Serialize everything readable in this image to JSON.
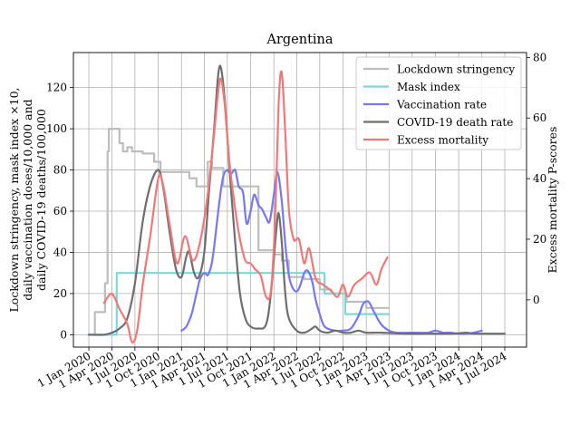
{
  "chart_data": {
    "type": "line",
    "title": "Argentina",
    "ylabel_left": [
      "Lockdown stringency, mask index ×10,",
      "daily vaccination doses/10,000 and",
      "daily COVID-19 deaths/100,000"
    ],
    "ylabel_right": "Excess mortality P-scores",
    "xlabel": "",
    "x_ticks": [
      "1 Jan 2020",
      "1 Apr 2020",
      "1 Jul 2020",
      "1 Oct 2020",
      "1 Jan 2021",
      "1 Apr 2021",
      "1 Jul 2021",
      "1 Oct 2021",
      "1 Jan 2022",
      "1 Apr 2022",
      "1 Jul 2022",
      "1 Oct 2022",
      "1 Jan 2023",
      "1 Apr 2023",
      "1 Jul 2023",
      "1 Oct 2023",
      "1 Jan 2024",
      "1 Apr 2024",
      "1 Jul 2024"
    ],
    "x_tick_dates": [
      "2020-01-01",
      "2020-04-01",
      "2020-07-01",
      "2020-10-01",
      "2021-01-01",
      "2021-04-01",
      "2021-07-01",
      "2021-10-01",
      "2022-01-01",
      "2022-04-01",
      "2022-07-01",
      "2022-10-01",
      "2023-01-01",
      "2023-04-01",
      "2023-07-01",
      "2023-10-01",
      "2024-01-01",
      "2024-04-01",
      "2024-07-01"
    ],
    "xlim": [
      "2019-11-01",
      "2024-09-25"
    ],
    "left_yticks": [
      0,
      20,
      40,
      60,
      80,
      100,
      120
    ],
    "left_ylim": [
      -6,
      137
    ],
    "right_yticks": [
      0,
      20,
      40,
      60,
      80
    ],
    "right_ylim": [
      -15.6,
      81.6
    ],
    "grid": true,
    "legend_position": "top-right",
    "series": [
      {
        "name": "Lockdown stringency",
        "color": "#bdbdbd",
        "axis": "left",
        "step": true,
        "points": [
          [
            "2020-01-01",
            0
          ],
          [
            "2020-01-25",
            0
          ],
          [
            "2020-01-25",
            11
          ],
          [
            "2020-03-05",
            11
          ],
          [
            "2020-03-05",
            25
          ],
          [
            "2020-03-15",
            25
          ],
          [
            "2020-03-15",
            89
          ],
          [
            "2020-03-20",
            89
          ],
          [
            "2020-03-20",
            100
          ],
          [
            "2020-05-01",
            100
          ],
          [
            "2020-05-01",
            93
          ],
          [
            "2020-05-15",
            93
          ],
          [
            "2020-05-15",
            89
          ],
          [
            "2020-06-01",
            89
          ],
          [
            "2020-06-01",
            91
          ],
          [
            "2020-06-20",
            91
          ],
          [
            "2020-06-20",
            89
          ],
          [
            "2020-08-01",
            89
          ],
          [
            "2020-08-01",
            88
          ],
          [
            "2020-09-15",
            88
          ],
          [
            "2020-09-15",
            84
          ],
          [
            "2020-10-10",
            84
          ],
          [
            "2020-10-10",
            79
          ],
          [
            "2021-02-01",
            79
          ],
          [
            "2021-02-01",
            76
          ],
          [
            "2021-03-01",
            76
          ],
          [
            "2021-03-01",
            72
          ],
          [
            "2021-04-15",
            72
          ],
          [
            "2021-04-15",
            84
          ],
          [
            "2021-05-01",
            84
          ],
          [
            "2021-05-01",
            81
          ],
          [
            "2021-06-15",
            81
          ],
          [
            "2021-06-15",
            72
          ],
          [
            "2021-11-01",
            72
          ],
          [
            "2021-11-01",
            41
          ],
          [
            "2022-01-01",
            41
          ],
          [
            "2022-01-01",
            39
          ],
          [
            "2022-02-01",
            39
          ],
          [
            "2022-02-01",
            36
          ],
          [
            "2022-03-01",
            36
          ],
          [
            "2022-03-01",
            28
          ],
          [
            "2022-05-01",
            28
          ],
          [
            "2022-05-01",
            27
          ],
          [
            "2022-07-01",
            27
          ],
          [
            "2022-07-01",
            22
          ],
          [
            "2022-08-15",
            22
          ],
          [
            "2022-08-15",
            20
          ],
          [
            "2022-10-15",
            20
          ],
          [
            "2022-10-15",
            16
          ],
          [
            "2023-01-01",
            16
          ],
          [
            "2023-01-01",
            13
          ],
          [
            "2023-04-01",
            13
          ]
        ]
      },
      {
        "name": "Mask index",
        "color": "#7fd8d8",
        "axis": "left",
        "step": true,
        "points": [
          [
            "2020-01-01",
            0
          ],
          [
            "2020-04-20",
            0
          ],
          [
            "2020-04-20",
            30
          ],
          [
            "2022-07-20",
            30
          ],
          [
            "2022-07-20",
            20
          ],
          [
            "2022-10-10",
            20
          ],
          [
            "2022-10-10",
            10
          ],
          [
            "2023-04-01",
            10
          ]
        ]
      },
      {
        "name": "Vaccination rate",
        "color": "#7777f2",
        "axis": "left",
        "step": false,
        "points": [
          [
            "2021-01-01",
            2
          ],
          [
            "2021-01-20",
            4
          ],
          [
            "2021-02-10",
            10
          ],
          [
            "2021-03-01",
            20
          ],
          [
            "2021-03-15",
            27
          ],
          [
            "2021-04-01",
            30
          ],
          [
            "2021-04-15",
            29
          ],
          [
            "2021-05-01",
            35
          ],
          [
            "2021-05-15",
            48
          ],
          [
            "2021-06-01",
            66
          ],
          [
            "2021-06-15",
            77
          ],
          [
            "2021-07-01",
            80
          ],
          [
            "2021-07-15",
            78
          ],
          [
            "2021-08-01",
            80
          ],
          [
            "2021-08-15",
            72
          ],
          [
            "2021-09-01",
            69
          ],
          [
            "2021-09-15",
            54
          ],
          [
            "2021-10-01",
            60
          ],
          [
            "2021-10-15",
            68
          ],
          [
            "2021-11-01",
            63
          ],
          [
            "2021-11-15",
            61
          ],
          [
            "2021-12-01",
            57
          ],
          [
            "2021-12-15",
            55
          ],
          [
            "2022-01-01",
            68
          ],
          [
            "2022-01-15",
            79
          ],
          [
            "2022-02-01",
            65
          ],
          [
            "2022-02-15",
            44
          ],
          [
            "2022-03-01",
            29
          ],
          [
            "2022-03-15",
            23
          ],
          [
            "2022-04-01",
            21
          ],
          [
            "2022-04-15",
            24
          ],
          [
            "2022-05-01",
            30
          ],
          [
            "2022-05-15",
            31
          ],
          [
            "2022-06-01",
            26
          ],
          [
            "2022-06-15",
            17
          ],
          [
            "2022-07-01",
            10
          ],
          [
            "2022-07-15",
            5
          ],
          [
            "2022-08-01",
            3
          ],
          [
            "2022-09-01",
            2
          ],
          [
            "2022-10-01",
            2
          ],
          [
            "2022-11-01",
            3
          ],
          [
            "2022-12-01",
            9
          ],
          [
            "2022-12-20",
            15
          ],
          [
            "2023-01-10",
            16
          ],
          [
            "2023-02-01",
            11
          ],
          [
            "2023-03-01",
            5
          ],
          [
            "2023-04-01",
            2
          ],
          [
            "2023-05-01",
            1
          ],
          [
            "2023-07-01",
            1
          ],
          [
            "2023-09-01",
            1
          ],
          [
            "2023-10-01",
            2
          ],
          [
            "2023-11-01",
            1
          ],
          [
            "2023-12-01",
            1
          ],
          [
            "2024-01-01",
            0.5
          ],
          [
            "2024-02-01",
            0.5
          ],
          [
            "2024-03-01",
            1
          ],
          [
            "2024-04-01",
            2
          ]
        ]
      },
      {
        "name": "COVID-19 death rate",
        "color": "#6e6e6e",
        "axis": "left",
        "step": false,
        "points": [
          [
            "2020-01-01",
            0
          ],
          [
            "2020-03-01",
            0
          ],
          [
            "2020-04-01",
            1
          ],
          [
            "2020-05-01",
            3
          ],
          [
            "2020-06-01",
            8
          ],
          [
            "2020-07-01",
            25
          ],
          [
            "2020-08-01",
            55
          ],
          [
            "2020-09-01",
            73
          ],
          [
            "2020-10-01",
            80
          ],
          [
            "2020-10-20",
            72
          ],
          [
            "2020-11-15",
            50
          ],
          [
            "2020-12-10",
            32
          ],
          [
            "2021-01-01",
            28
          ],
          [
            "2021-01-20",
            38
          ],
          [
            "2021-02-01",
            40
          ],
          [
            "2021-02-20",
            30
          ],
          [
            "2021-03-10",
            28
          ],
          [
            "2021-04-01",
            40
          ],
          [
            "2021-04-20",
            70
          ],
          [
            "2021-05-10",
            100
          ],
          [
            "2021-05-25",
            125
          ],
          [
            "2021-06-05",
            130
          ],
          [
            "2021-06-20",
            115
          ],
          [
            "2021-07-10",
            80
          ],
          [
            "2021-08-01",
            45
          ],
          [
            "2021-08-20",
            20
          ],
          [
            "2021-09-10",
            8
          ],
          [
            "2021-10-01",
            4
          ],
          [
            "2021-11-01",
            3
          ],
          [
            "2021-12-01",
            5
          ],
          [
            "2021-12-20",
            20
          ],
          [
            "2022-01-10",
            50
          ],
          [
            "2022-01-20",
            59
          ],
          [
            "2022-02-01",
            45
          ],
          [
            "2022-02-15",
            20
          ],
          [
            "2022-03-01",
            8
          ],
          [
            "2022-04-01",
            2
          ],
          [
            "2022-05-01",
            1
          ],
          [
            "2022-06-01",
            3
          ],
          [
            "2022-06-15",
            4
          ],
          [
            "2022-07-01",
            2
          ],
          [
            "2022-08-01",
            1
          ],
          [
            "2022-09-01",
            2
          ],
          [
            "2022-10-01",
            1
          ],
          [
            "2022-11-01",
            1
          ],
          [
            "2022-12-01",
            2
          ],
          [
            "2023-01-01",
            1
          ],
          [
            "2023-03-01",
            1
          ],
          [
            "2023-06-01",
            0.5
          ],
          [
            "2023-09-01",
            0.5
          ],
          [
            "2023-12-01",
            0.5
          ],
          [
            "2024-02-01",
            1
          ],
          [
            "2024-03-01",
            0.5
          ],
          [
            "2024-07-01",
            0.5
          ]
        ]
      },
      {
        "name": "Excess mortality",
        "color": "#f07878",
        "axis": "right",
        "step": false,
        "points": [
          [
            "2020-03-01",
            -1
          ],
          [
            "2020-04-01",
            2
          ],
          [
            "2020-05-01",
            -3
          ],
          [
            "2020-06-01",
            -8
          ],
          [
            "2020-06-20",
            -14
          ],
          [
            "2020-07-10",
            -10
          ],
          [
            "2020-08-01",
            5
          ],
          [
            "2020-09-01",
            22
          ],
          [
            "2020-10-01",
            40
          ],
          [
            "2020-10-20",
            38
          ],
          [
            "2020-11-15",
            25
          ],
          [
            "2020-12-15",
            12
          ],
          [
            "2021-01-15",
            21
          ],
          [
            "2021-02-15",
            13
          ],
          [
            "2021-03-15",
            19
          ],
          [
            "2021-04-15",
            35
          ],
          [
            "2021-05-10",
            55
          ],
          [
            "2021-05-25",
            68
          ],
          [
            "2021-06-05",
            73
          ],
          [
            "2021-06-20",
            65
          ],
          [
            "2021-07-10",
            45
          ],
          [
            "2021-08-01",
            30
          ],
          [
            "2021-08-20",
            20
          ],
          [
            "2021-09-10",
            13
          ],
          [
            "2021-10-01",
            12
          ],
          [
            "2021-10-20",
            10
          ],
          [
            "2021-11-10",
            8
          ],
          [
            "2021-12-01",
            1
          ],
          [
            "2021-12-20",
            3
          ],
          [
            "2022-01-05",
            25
          ],
          [
            "2022-01-20",
            65
          ],
          [
            "2022-02-01",
            75
          ],
          [
            "2022-02-15",
            55
          ],
          [
            "2022-03-01",
            30
          ],
          [
            "2022-03-20",
            20
          ],
          [
            "2022-04-10",
            20
          ],
          [
            "2022-05-01",
            12
          ],
          [
            "2022-05-20",
            17
          ],
          [
            "2022-06-15",
            7
          ],
          [
            "2022-07-15",
            5
          ],
          [
            "2022-08-15",
            3
          ],
          [
            "2022-09-10",
            1
          ],
          [
            "2022-10-01",
            5
          ],
          [
            "2022-10-20",
            1
          ],
          [
            "2022-11-15",
            5
          ],
          [
            "2022-12-15",
            7
          ],
          [
            "2023-01-15",
            9
          ],
          [
            "2023-02-10",
            5
          ],
          [
            "2023-03-01",
            10
          ],
          [
            "2023-03-25",
            14
          ]
        ]
      }
    ]
  }
}
